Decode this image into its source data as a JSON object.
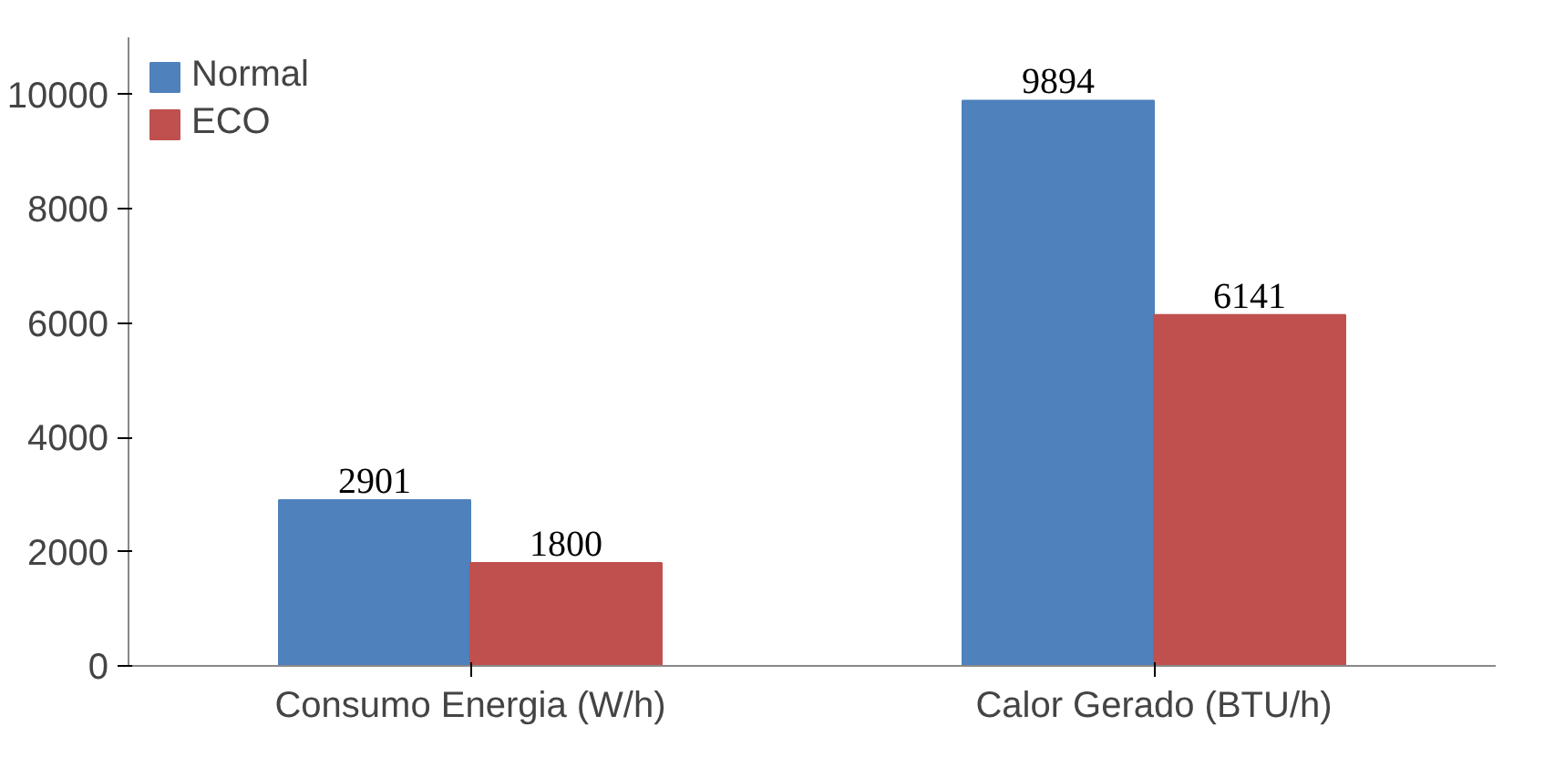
{
  "chart_data": {
    "type": "bar",
    "categories": [
      "Consumo Energia (W/h)",
      "Calor Gerado (BTU/h)"
    ],
    "series": [
      {
        "name": "Normal",
        "color": "#4f81bd",
        "values": [
          2901,
          9894
        ]
      },
      {
        "name": "ECO",
        "color": "#c0504d",
        "values": [
          1800,
          6141
        ]
      }
    ],
    "ylim": [
      0,
      11000
    ],
    "yticks": [
      0,
      2000,
      4000,
      6000,
      8000,
      10000
    ],
    "data_labels": true,
    "grid": false,
    "legend": "top left"
  }
}
